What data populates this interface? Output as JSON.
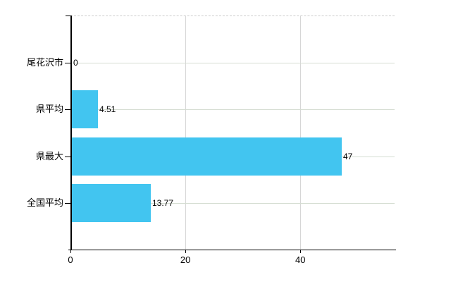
{
  "chart_data": {
    "type": "bar",
    "orientation": "horizontal",
    "title": "",
    "categories": [
      "尾花沢市",
      "県平均",
      "県最大",
      "全国平均"
    ],
    "values": [
      0,
      4.51,
      47,
      13.77
    ],
    "value_labels": [
      "0",
      "4.51",
      "47",
      "13.77"
    ],
    "x_axis": {
      "ticks": [
        0,
        20,
        40
      ],
      "tick_labels": [
        "0",
        "20",
        "40"
      ],
      "range": [
        0,
        56.4
      ]
    },
    "grid": true,
    "legend": false,
    "colors": {
      "bar": "#42c5f0",
      "axis": "#000000",
      "grid_horizontal": "#d5ddd2",
      "grid_vertical": "#d6d6d6",
      "plot_top_border": "#cccccc",
      "text": "#000000",
      "background": "#ffffff"
    }
  }
}
